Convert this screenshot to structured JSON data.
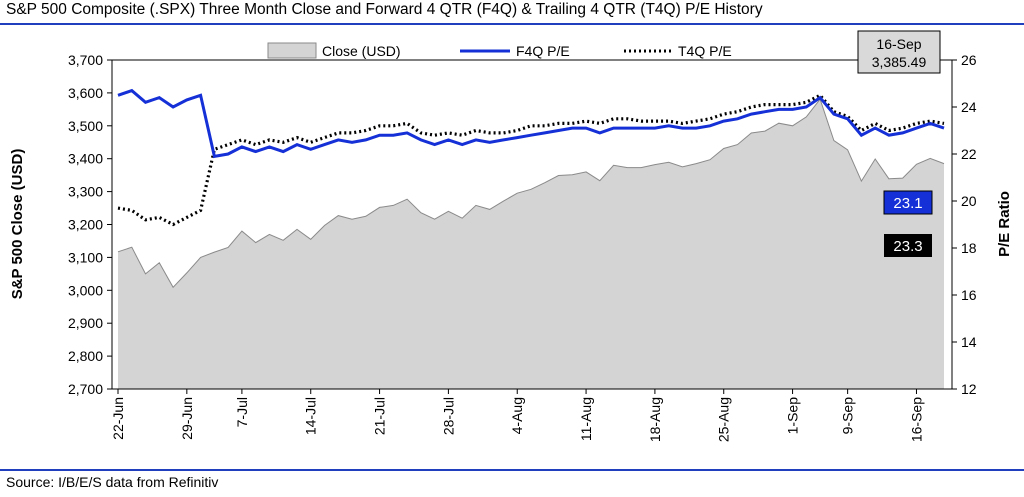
{
  "header": {
    "title": "S&P 500 Composite (.SPX) Three Month Close and Forward 4 QTR (F4Q) & Trailing 4 QTR (T4Q) P/E History"
  },
  "footer": {
    "source": "Source: I/B/E/S data from Refinitiv"
  },
  "callouts": {
    "date_box": {
      "line1": "16-Sep",
      "line2": "3,385.49"
    },
    "f4q_value": "23.1",
    "t4q_value": "23.3"
  },
  "colors": {
    "area_fill": "#d4d4d4",
    "area_stroke": "#8a8a8a",
    "f4q": "#1530d6",
    "t4q": "#000000",
    "rule": "#1f3fbf",
    "f4q_box": "#1530d6",
    "t4q_box": "#000000",
    "date_box": "#d9d9d9"
  },
  "chart_data": {
    "type": "area",
    "title": "S&P 500 Composite (.SPX) Three Month Close and Forward 4 QTR (F4Q) & Trailing 4 QTR (T4Q) P/E History",
    "ylabel": "S&P 500 Close (USD)",
    "y2label": "P/E Ratio",
    "ylim": [
      2700,
      3700
    ],
    "y2lim": [
      12,
      26
    ],
    "yticks": [
      "2,700",
      "2,800",
      "2,900",
      "3,000",
      "3,100",
      "3,200",
      "3,300",
      "3,400",
      "3,500",
      "3,600",
      "3,700"
    ],
    "y2ticks": [
      "12",
      "14",
      "16",
      "18",
      "20",
      "22",
      "24",
      "26"
    ],
    "xtick_labels": [
      "22-Jun",
      "29-Jun",
      "7-Jul",
      "14-Jul",
      "21-Jul",
      "28-Jul",
      "4-Aug",
      "11-Aug",
      "18-Aug",
      "25-Aug",
      "1-Sep",
      "9-Sep",
      "16-Sep"
    ],
    "xtick_index": [
      0,
      5,
      9,
      14,
      19,
      24,
      29,
      34,
      39,
      44,
      49,
      53,
      58
    ],
    "legend": [
      "Close (USD)",
      "F4Q P/E",
      "T4Q P/E"
    ],
    "legend_position": "top",
    "dates": [
      "22-Jun",
      "23-Jun",
      "24-Jun",
      "25-Jun",
      "26-Jun",
      "29-Jun",
      "30-Jun",
      "1-Jul",
      "2-Jul",
      "6-Jul",
      "7-Jul",
      "8-Jul",
      "9-Jul",
      "10-Jul",
      "13-Jul",
      "14-Jul",
      "15-Jul",
      "16-Jul",
      "17-Jul",
      "20-Jul",
      "21-Jul",
      "22-Jul",
      "23-Jul",
      "24-Jul",
      "27-Jul",
      "28-Jul",
      "29-Jul",
      "30-Jul",
      "31-Jul",
      "3-Aug",
      "4-Aug",
      "5-Aug",
      "6-Aug",
      "7-Aug",
      "10-Aug",
      "11-Aug",
      "12-Aug",
      "13-Aug",
      "14-Aug",
      "17-Aug",
      "18-Aug",
      "19-Aug",
      "20-Aug",
      "21-Aug",
      "24-Aug",
      "25-Aug",
      "26-Aug",
      "27-Aug",
      "28-Aug",
      "31-Aug",
      "1-Sep",
      "2-Sep",
      "3-Sep",
      "4-Sep",
      "8-Sep",
      "9-Sep",
      "10-Sep",
      "11-Sep",
      "14-Sep",
      "15-Sep",
      "16-Sep"
    ],
    "series": [
      {
        "name": "Close (USD)",
        "axis": "left",
        "values": [
          3117,
          3131,
          3050,
          3084,
          3009,
          3053,
          3100,
          3116,
          3130,
          3180,
          3145,
          3170,
          3152,
          3185,
          3155,
          3197,
          3227,
          3216,
          3225,
          3252,
          3258,
          3277,
          3236,
          3216,
          3240,
          3219,
          3258,
          3246,
          3271,
          3295,
          3307,
          3327,
          3349,
          3351,
          3360,
          3333,
          3380,
          3373,
          3373,
          3382,
          3389,
          3375,
          3385,
          3397,
          3431,
          3443,
          3478,
          3484,
          3508,
          3500,
          3527,
          3581,
          3455,
          3427,
          3332,
          3399,
          3339,
          3341,
          3383,
          3401,
          3385
        ]
      },
      {
        "name": "F4Q P/E",
        "axis": "right",
        "values": [
          24.5,
          24.7,
          24.2,
          24.4,
          24.0,
          24.3,
          24.5,
          21.9,
          22.0,
          22.3,
          22.1,
          22.3,
          22.1,
          22.4,
          22.2,
          22.4,
          22.6,
          22.5,
          22.6,
          22.8,
          22.8,
          22.9,
          22.6,
          22.4,
          22.6,
          22.4,
          22.6,
          22.5,
          22.6,
          22.7,
          22.8,
          22.9,
          23.0,
          23.1,
          23.1,
          22.9,
          23.1,
          23.1,
          23.1,
          23.1,
          23.2,
          23.1,
          23.1,
          23.2,
          23.4,
          23.5,
          23.7,
          23.8,
          23.9,
          23.9,
          24.0,
          24.4,
          23.7,
          23.5,
          22.8,
          23.1,
          22.8,
          22.9,
          23.1,
          23.3,
          23.1
        ]
      },
      {
        "name": "T4Q P/E",
        "axis": "right",
        "values": [
          19.7,
          19.6,
          19.2,
          19.3,
          19.0,
          19.3,
          19.6,
          22.2,
          22.4,
          22.6,
          22.4,
          22.6,
          22.5,
          22.7,
          22.5,
          22.7,
          22.9,
          22.9,
          23.0,
          23.2,
          23.2,
          23.3,
          22.9,
          22.8,
          22.9,
          22.8,
          23.0,
          22.9,
          22.9,
          23.0,
          23.2,
          23.2,
          23.3,
          23.3,
          23.4,
          23.3,
          23.5,
          23.5,
          23.4,
          23.4,
          23.4,
          23.3,
          23.4,
          23.5,
          23.7,
          23.8,
          24.0,
          24.1,
          24.1,
          24.1,
          24.2,
          24.5,
          23.8,
          23.6,
          23.0,
          23.3,
          23.0,
          23.1,
          23.3,
          23.4,
          23.3
        ]
      }
    ]
  }
}
